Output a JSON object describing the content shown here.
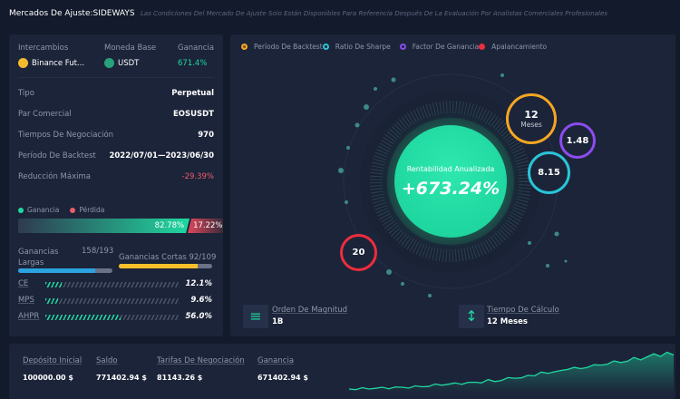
{
  "header": {
    "title": "Mercados De Ajuste:SIDEWAYS",
    "subtitle": "Las Condiciones Del Mercado De Ajuste Solo Están Disponibles Para Referencia Después De La Evaluación Por Analistas Comerciales Profesionales"
  },
  "summary": {
    "exchange_label": "Intercambios",
    "exchange": "Binance Fut...",
    "base_label": "Moneda Base",
    "base": "USDT",
    "profit_label": "Ganancia",
    "profit": "671.4%"
  },
  "details": [
    {
      "label": "Tipo",
      "value": "Perpetual"
    },
    {
      "label": "Par Comercial",
      "value": "EOSUSDT"
    },
    {
      "label": "Tiempos De Negociación",
      "value": "970"
    },
    {
      "label": "Período De Backtest",
      "value": "2022/07/01—2023/06/30"
    },
    {
      "label": "Reducción Máxima",
      "value": "-29.39%"
    }
  ],
  "winloss": {
    "win_label": "Ganancia",
    "loss_label": "Pérdida",
    "win": "82.78%",
    "loss": "17.22%",
    "win_fraction": 0.8278
  },
  "longs": {
    "label": "Ganancias Largas",
    "value": "158/193",
    "fraction": 0.819
  },
  "shorts": {
    "label": "Ganancias Cortas",
    "value": "92/109",
    "fraction": 0.844
  },
  "metrics": [
    {
      "label": "CE",
      "value": "12.1%",
      "fraction": 0.121
    },
    {
      "label": "MPS",
      "value": "9.6%",
      "fraction": 0.096
    },
    {
      "label": "AHPR",
      "value": "56.0%",
      "fraction": 0.56
    }
  ],
  "legend": [
    "Período De Backtest",
    "Ratio De Sharpe",
    "Factor De Ganancia",
    "Apalancamiento"
  ],
  "colors": {
    "orange": "#f5a623",
    "cyan": "#2ac4d6",
    "purple": "#8b4cf0",
    "red": "#ec2d3c",
    "green": "#1fd8a0"
  },
  "center": {
    "label": "Rentabilidad Anualizada",
    "value": "+673.24%"
  },
  "bubbles": {
    "period": "12",
    "period_unit": "Meses",
    "factor": "1.48",
    "sharpe": "8.15",
    "leverage": "20"
  },
  "footer_stats": [
    {
      "label": "Orden De Magnitud",
      "value": "1B",
      "icon": "database-icon"
    },
    {
      "label": "Tiempo De Cálculo",
      "value": "12 Meses",
      "icon": "sort-list-icon"
    }
  ],
  "bottom": [
    {
      "label": "Depósito Inicial",
      "value": "100000.00 $"
    },
    {
      "label": "Saldo",
      "value": "771402.94 $"
    },
    {
      "label": "Tarifas De Negociación",
      "value": "81143.26 $"
    },
    {
      "label": "Ganancia",
      "value": "671402.94 $"
    }
  ],
  "sparkline": [
    0,
    0.3,
    0.5,
    1,
    1.5,
    1.3,
    2,
    2.5,
    2,
    3,
    3.5,
    3.8,
    5,
    6,
    7,
    7.5,
    8,
    9,
    9.5,
    10,
    11,
    13,
    12,
    14,
    16,
    18,
    17,
    20,
    22,
    25,
    24,
    28,
    27,
    31,
    34,
    30,
    35,
    37,
    36,
    40,
    42,
    41,
    44,
    47,
    46,
    50,
    53,
    52,
    56,
    52
  ]
}
